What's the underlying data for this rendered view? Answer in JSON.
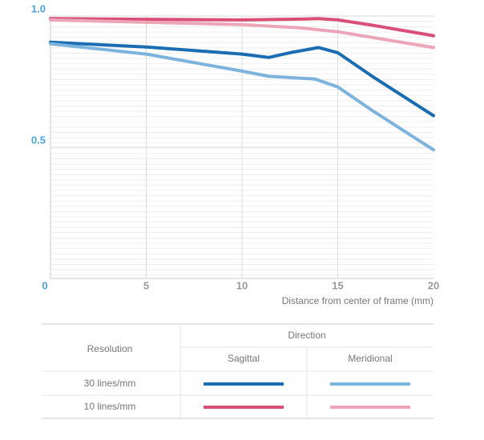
{
  "chart_data": {
    "type": "line",
    "xlabel": "Distance from center of frame (mm)",
    "xlim": [
      0,
      20
    ],
    "xticks": [
      0,
      5,
      10,
      15,
      20
    ],
    "ylim": [
      0,
      1
    ],
    "yticks": [
      {
        "value": 1,
        "label": "1.0"
      },
      0.5
    ],
    "grid": true,
    "series": [
      {
        "color": "#1a6db3",
        "x": [
          0,
          5,
          10,
          11.4,
          12.5,
          14,
          15,
          16.8,
          20
        ],
        "values": [
          0.9,
          0.882,
          0.855,
          0.842,
          0.86,
          0.88,
          0.86,
          0.77,
          0.62
        ]
      },
      {
        "color": "#7db4de",
        "x": [
          0,
          5,
          10,
          11.4,
          13.8,
          15,
          16.8,
          20
        ],
        "values": [
          0.894,
          0.855,
          0.79,
          0.77,
          0.76,
          0.73,
          0.64,
          0.49
        ]
      },
      {
        "color": "#d94f78",
        "x": [
          0,
          10,
          13,
          14,
          15,
          16.8,
          20
        ],
        "values": [
          0.99,
          0.985,
          0.988,
          0.99,
          0.985,
          0.965,
          0.925
        ]
      },
      {
        "color": "#eca6b8",
        "x": [
          0,
          10,
          13,
          15,
          20
        ],
        "values": [
          0.985,
          0.967,
          0.955,
          0.94,
          0.88
        ]
      }
    ],
    "legend": {
      "row_header": "Resolution",
      "column_header": "Direction",
      "columns": [
        "Sagittal",
        "Meridional"
      ],
      "rows": [
        "30 lines/mm",
        "10 lines/mm"
      ]
    }
  }
}
